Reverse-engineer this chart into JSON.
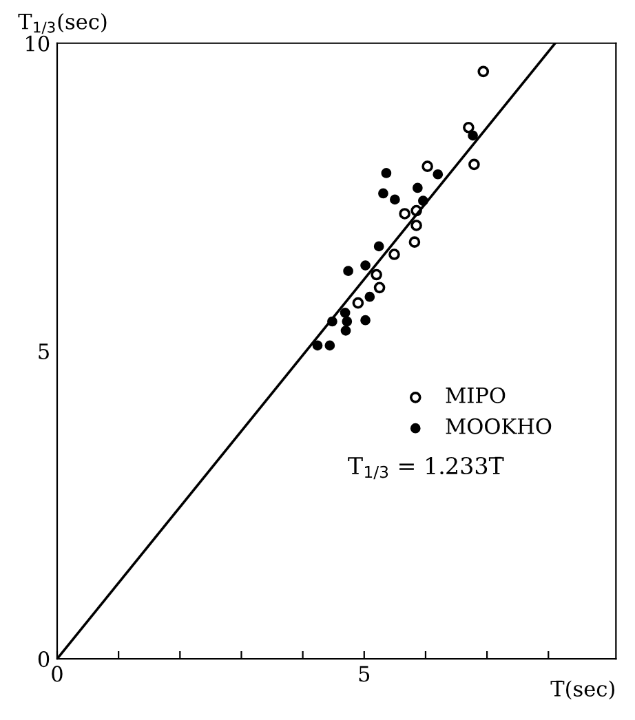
{
  "chart_data": {
    "type": "scatter",
    "xlabel": "T̄(sec)",
    "ylabel": "T$_{1/3}$(sec)",
    "xlim": [
      0,
      9.1
    ],
    "ylim": [
      0,
      10
    ],
    "xticks": [
      0,
      {
        "value": 1,
        "label": null
      },
      {
        "value": 2,
        "label": null
      },
      {
        "value": 3,
        "label": null
      },
      {
        "value": 4,
        "label": null
      },
      5,
      {
        "value": 6,
        "label": null
      },
      {
        "value": 7,
        "label": null
      },
      {
        "value": 8,
        "label": null
      }
    ],
    "yticks": [
      0,
      5,
      10
    ],
    "grid": false,
    "legend": "center right",
    "annotations": [
      "T$_{1/3}$ = 1.233T̄"
    ],
    "series": [
      {
        "name": "MIPO",
        "color": "#000000",
        "marker": "open circle",
        "x": [
          6.94,
          6.7,
          6.79,
          6.03,
          5.66,
          5.85,
          5.85,
          5.82,
          5.49,
          5.2,
          5.25,
          4.9
        ],
        "values": [
          9.54,
          8.63,
          8.03,
          8.0,
          7.23,
          7.28,
          7.04,
          6.77,
          6.57,
          6.24,
          6.03,
          5.78
        ]
      },
      {
        "name": "MOOKHO",
        "color": "#000000",
        "marker": "circle",
        "x": [
          6.77,
          6.2,
          5.36,
          5.31,
          5.5,
          5.87,
          5.96,
          5.24,
          5.02,
          4.74,
          5.09,
          4.69,
          4.48,
          4.72,
          4.7,
          5.02,
          4.24,
          4.44
        ],
        "values": [
          8.5,
          7.87,
          7.89,
          7.56,
          7.46,
          7.65,
          7.44,
          6.7,
          6.39,
          6.3,
          5.88,
          5.62,
          5.48,
          5.48,
          5.33,
          5.5,
          5.09,
          5.09
        ]
      },
      {
        "type": "line",
        "color": "#000000",
        "x": [
          0,
          8.11
        ],
        "values": [
          0,
          10
        ]
      }
    ]
  }
}
